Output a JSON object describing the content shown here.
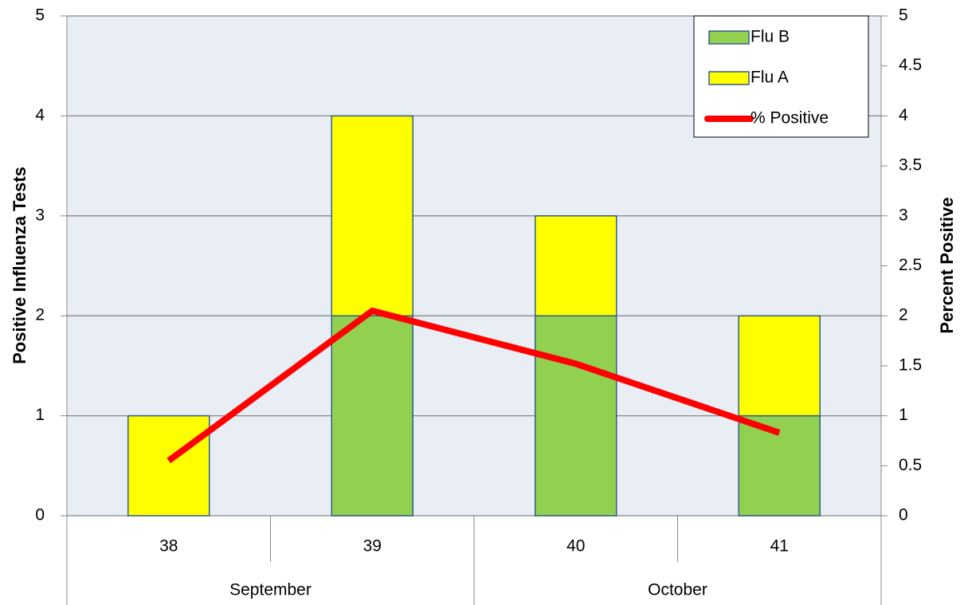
{
  "chart_data": {
    "type": "bar",
    "categories": [
      "38",
      "39",
      "40",
      "41"
    ],
    "category_groups": [
      "September",
      "September",
      "October",
      "October"
    ],
    "y_label": "Positive Influenza Tests",
    "y2_label": "Percent Positive",
    "ylim": [
      0,
      5
    ],
    "yticks": [
      0,
      1,
      2,
      3,
      4,
      5
    ],
    "y2lim": [
      0,
      5
    ],
    "y2ticks": [
      0,
      0.5,
      1,
      1.5,
      2,
      2.5,
      3,
      3.5,
      4,
      4.5,
      5
    ],
    "grid": true,
    "stacked": true,
    "legend": "upper right",
    "series": [
      {
        "name": "Flu B",
        "type": "bar",
        "color": "#92d050",
        "values": [
          0,
          2,
          2,
          1
        ]
      },
      {
        "name": "Flu A",
        "type": "bar",
        "color": "#ffff00",
        "values": [
          1,
          2,
          1,
          1
        ]
      },
      {
        "name": "% Positive",
        "type": "line",
        "axis": "y2",
        "color": "#ff0000",
        "values": [
          0.55,
          2.05,
          1.52,
          0.83
        ]
      }
    ]
  }
}
